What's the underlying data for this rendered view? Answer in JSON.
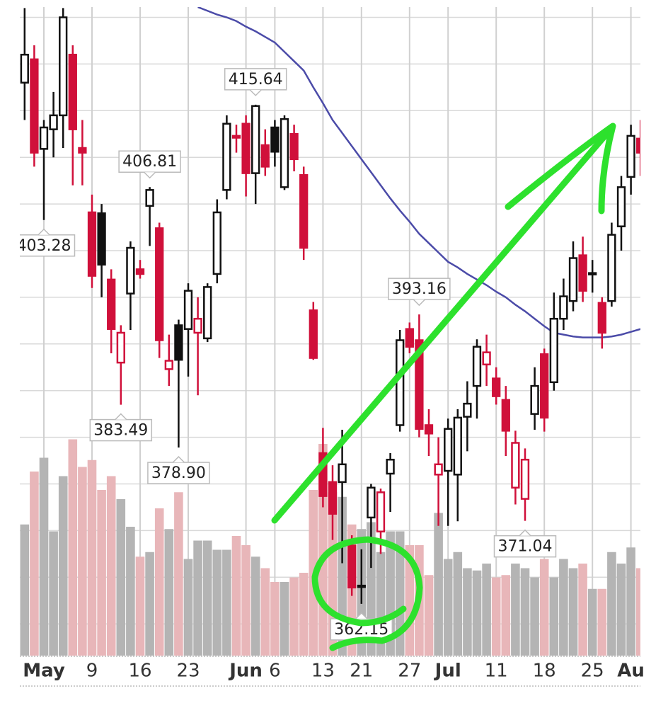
{
  "chart_data": {
    "type": "candlestick",
    "categories": [
      null,
      null,
      "May",
      null,
      null,
      null,
      null,
      "9",
      null,
      null,
      null,
      null,
      "16",
      null,
      null,
      null,
      null,
      "23",
      null,
      null,
      null,
      null,
      null,
      "Jun",
      null,
      null,
      "6",
      null,
      null,
      null,
      null,
      "13",
      null,
      null,
      null,
      "21",
      null,
      null,
      null,
      null,
      "27",
      null,
      null,
      null,
      "Jul",
      null,
      null,
      null,
      null,
      "11",
      null,
      null,
      null,
      null,
      "18",
      null,
      null,
      null,
      null,
      "25",
      null,
      null,
      null,
      "Au",
      null
    ],
    "open": [
      418,
      420.5,
      410.9,
      413,
      414.5,
      421,
      411,
      404.1,
      404,
      396.9,
      388,
      395.4,
      398,
      404.8,
      402.4,
      387.3,
      392,
      391.6,
      391.2,
      390.6,
      397.5,
      406.5,
      412.3,
      413.6,
      408.3,
      411.3,
      413.2,
      406.8,
      412.5,
      408.1,
      393.6,
      378.3,
      375.2,
      375.2,
      368.4,
      364,
      371.4,
      369.9,
      376.1,
      381.3,
      391.6,
      390.4,
      381.3,
      376,
      376.4,
      376,
      382.2,
      385.5,
      387.8,
      386.3,
      384,
      374.6,
      373.4,
      382.5,
      388.9,
      385.9,
      392.7,
      394.6,
      399.5,
      397.5,
      394.4,
      394.6,
      402.6,
      407.9,
      412
    ],
    "high": [
      426,
      422,
      414,
      417,
      426,
      422,
      414,
      406,
      405,
      398,
      392,
      401,
      399,
      406.81,
      403,
      391,
      392.6,
      396.5,
      395,
      396.5,
      405.5,
      414.5,
      413.5,
      414.5,
      415.64,
      413,
      414,
      414.5,
      413.5,
      409,
      394.5,
      381,
      377,
      380.8,
      369.5,
      368,
      375,
      374.5,
      378.3,
      391.5,
      392.3,
      393.16,
      383,
      380,
      382,
      383,
      386,
      390.5,
      391,
      387.5,
      385.5,
      380.7,
      378.8,
      387.5,
      389.5,
      395.5,
      397,
      401,
      401.5,
      399,
      395,
      403,
      408,
      413.5,
      414
    ],
    "low": [
      414,
      409,
      403.28,
      410,
      411,
      407,
      407,
      396,
      395,
      389,
      383.49,
      391.5,
      397,
      400.5,
      388.5,
      385.5,
      378.9,
      386.5,
      384.5,
      390.2,
      396.5,
      405.5,
      410.5,
      405.8,
      405,
      408,
      409,
      406.5,
      408.5,
      399,
      388.3,
      372.5,
      369,
      366.5,
      363,
      362.15,
      366,
      367.5,
      372,
      380.6,
      389,
      380,
      378,
      370.5,
      370.5,
      371,
      378.5,
      382,
      385.5,
      383.5,
      378,
      372.8,
      371.04,
      380.8,
      380.6,
      385,
      391.5,
      393.5,
      394.5,
      395.5,
      389.5,
      394,
      400,
      406,
      408
    ],
    "close": [
      421,
      410.5,
      413.2,
      414.5,
      425,
      413,
      410.5,
      397.3,
      398.5,
      391.6,
      391.2,
      400.3,
      397.5,
      406.5,
      390.4,
      388.2,
      388.3,
      395.7,
      392.7,
      396.1,
      404.1,
      413.6,
      412.1,
      408.3,
      415.5,
      409,
      410.6,
      414.1,
      409.8,
      400.3,
      388.5,
      373.7,
      371.8,
      377.1,
      363.9,
      364.1,
      374.6,
      374.1,
      377.6,
      390.4,
      389.7,
      380.9,
      380.4,
      377.1,
      380.9,
      382.1,
      383.6,
      389.7,
      389.1,
      384.4,
      380.7,
      379.4,
      377.6,
      385.5,
      382.1,
      392.7,
      395.1,
      399.2,
      395.7,
      397.6,
      391.2,
      401.7,
      406.8,
      412.3,
      410.5
    ],
    "volume": [
      57,
      80,
      86,
      54,
      78,
      94,
      82,
      85,
      72,
      78,
      68,
      56,
      43,
      45,
      64,
      55,
      71,
      42,
      50,
      50,
      46,
      46,
      52,
      48,
      43,
      38,
      32,
      32,
      34,
      36,
      72,
      92,
      71,
      69,
      57,
      55,
      58,
      45,
      54,
      54,
      48,
      48,
      35,
      62,
      42,
      45,
      38,
      37,
      40,
      34,
      35,
      40,
      38,
      34,
      42,
      34,
      42,
      38,
      40,
      29,
      29,
      45,
      40,
      47,
      38
    ],
    "high_labels": [
      null,
      null,
      null,
      null,
      null,
      null,
      null,
      null,
      null,
      null,
      null,
      null,
      null,
      "406.81",
      null,
      null,
      null,
      null,
      null,
      null,
      null,
      null,
      null,
      null,
      "415.64",
      null,
      null,
      null,
      null,
      null,
      null,
      null,
      null,
      null,
      null,
      null,
      null,
      null,
      null,
      null,
      null,
      "393.16",
      null,
      null,
      null,
      null,
      null,
      null,
      null,
      null,
      null,
      null,
      null,
      null,
      null,
      null,
      null,
      null,
      null,
      null,
      null,
      null,
      null,
      null,
      null
    ],
    "low_labels": [
      null,
      null,
      "403.28",
      null,
      null,
      null,
      null,
      null,
      null,
      null,
      "383.49",
      null,
      null,
      null,
      null,
      null,
      "378.90",
      null,
      null,
      null,
      null,
      null,
      null,
      null,
      null,
      null,
      null,
      null,
      null,
      null,
      null,
      null,
      null,
      null,
      null,
      "362.15",
      null,
      null,
      null,
      null,
      null,
      null,
      null,
      null,
      null,
      null,
      null,
      null,
      null,
      null,
      null,
      null,
      "371.04",
      null,
      null,
      null,
      null,
      null,
      null,
      null,
      null,
      null,
      null,
      null,
      null
    ],
    "moving_average": {
      "color": "#4b4ba8",
      "values": [
        null,
        null,
        null,
        null,
        null,
        null,
        null,
        null,
        null,
        null,
        null,
        null,
        null,
        null,
        null,
        null,
        null,
        null,
        426.1,
        425.7,
        425.3,
        425.0,
        424.6,
        424.0,
        423.5,
        422.9,
        422.3,
        421.3,
        420.3,
        419.3,
        417.5,
        415.8,
        414.0,
        412.6,
        411.2,
        409.8,
        408.4,
        407.0,
        405.6,
        404.3,
        403.1,
        401.8,
        400.8,
        399.8,
        398.8,
        398.2,
        397.5,
        396.9,
        396.3,
        395.6,
        395.0,
        394.2,
        393.5,
        392.7,
        391.9,
        391.2,
        391.0,
        390.8,
        390.7,
        390.7,
        390.7,
        390.8,
        391.0,
        391.3,
        391.6
      ]
    },
    "ylim": [
      356.6,
      426.1
    ],
    "yticks": [
      360,
      365,
      370,
      375,
      380,
      385,
      390,
      395,
      400,
      405,
      410,
      415,
      420,
      425
    ],
    "volume_lim": [
      0,
      100
    ],
    "grid": true,
    "up_color": "#ffffff",
    "down_color": "#d0103a",
    "up_volume_color": "#b4b4b4",
    "down_volume_color": "#e8b6b9"
  }
}
